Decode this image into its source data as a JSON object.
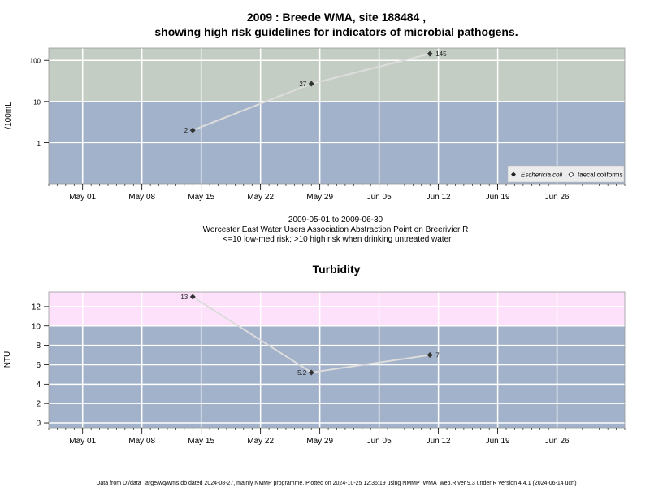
{
  "header": {
    "title_line1": "2009 : Breede WMA, site 188484 ,",
    "title_line2": "showing high risk guidelines for indicators of microbial pathogens."
  },
  "subtitle": {
    "line1": "2009-05-01 to 2009-06-30",
    "line2": "Worcester East Water Users Association Abstraction Point on Breerivier R",
    "line3": "<=10 low-med risk; >10 high risk when drinking untreated water"
  },
  "footer": {
    "text": "Data from D:/data_large/wq/wms.db dated 2024-08-27, mainly NMMP programme. Plotted on 2024-10-25 12:36:19 using NMMP_WMA_web.R ver 9.3 under R version 4.4.1 (2024-06-14 ucrt)"
  },
  "colors": {
    "low_band": "#a2b2ca",
    "high_band_micro": "#c4cdc3",
    "high_band_turb": "#fde1fa",
    "grid": "#ffffff",
    "line": "#dcdcdc",
    "point": "#333333"
  },
  "chart_data": [
    {
      "type": "line",
      "title": "",
      "xlabel": "",
      "ylabel": "/100mL",
      "yscale": "log",
      "ylim": [
        0.1,
        200
      ],
      "yticks": [
        1,
        10,
        100
      ],
      "ytick_labels": [
        "1",
        "10",
        "100"
      ],
      "threshold": 10,
      "xlim": [
        "2009-04-27",
        "2009-07-04"
      ],
      "xticks": [
        "2009-05-01",
        "2009-05-08",
        "2009-05-15",
        "2009-05-22",
        "2009-05-29",
        "2009-06-05",
        "2009-06-12",
        "2009-06-19",
        "2009-06-26"
      ],
      "xtick_labels": [
        "May 01",
        "May 08",
        "May 15",
        "May 22",
        "May 29",
        "Jun 05",
        "Jun 12",
        "Jun 19",
        "Jun 26"
      ],
      "series": [
        {
          "name": "Eschericia coli",
          "marker": "filled-diamond",
          "x": [
            "2009-05-14",
            "2009-05-28",
            "2009-06-11"
          ],
          "y": [
            2,
            27,
            145
          ],
          "labels": [
            "2",
            "27",
            "145"
          ],
          "label_side": [
            "left",
            "left",
            "right"
          ]
        }
      ],
      "legend": {
        "position": "bottom-right",
        "entries": [
          {
            "label": "Eschericia coli",
            "marker": "filled-diamond",
            "italic": true
          },
          {
            "label": "faecal coliforms",
            "marker": "open-diamond",
            "italic": false
          }
        ]
      }
    },
    {
      "type": "line",
      "title": "Turbidity",
      "xlabel": "",
      "ylabel": "NTU",
      "yscale": "linear",
      "ylim": [
        -0.5,
        13.5
      ],
      "yticks": [
        0,
        2,
        4,
        6,
        8,
        10,
        12
      ],
      "ytick_labels": [
        "0",
        "2",
        "4",
        "6",
        "8",
        "10",
        "12"
      ],
      "threshold": 10,
      "xlim": [
        "2009-04-27",
        "2009-07-04"
      ],
      "xticks": [
        "2009-05-01",
        "2009-05-08",
        "2009-05-15",
        "2009-05-22",
        "2009-05-29",
        "2009-06-05",
        "2009-06-12",
        "2009-06-19",
        "2009-06-26"
      ],
      "xtick_labels": [
        "May 01",
        "May 08",
        "May 15",
        "May 22",
        "May 29",
        "Jun 05",
        "Jun 12",
        "Jun 19",
        "Jun 26"
      ],
      "series": [
        {
          "marker": "filled-diamond",
          "x": [
            "2009-05-14",
            "2009-05-28",
            "2009-06-11"
          ],
          "y": [
            13,
            5.2,
            7
          ],
          "labels": [
            "13",
            "5.2",
            "7"
          ],
          "label_side": [
            "left",
            "left",
            "right"
          ]
        }
      ]
    }
  ]
}
